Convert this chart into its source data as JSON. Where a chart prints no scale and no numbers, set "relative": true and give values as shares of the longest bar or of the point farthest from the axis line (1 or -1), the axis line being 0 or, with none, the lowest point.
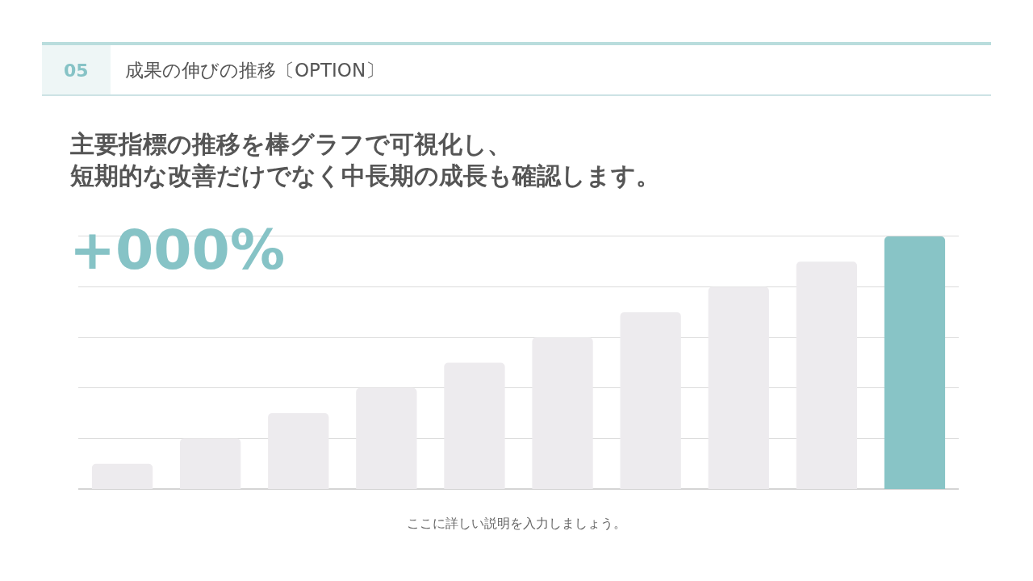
{
  "chart_data": {
    "type": "bar",
    "title": "成果の伸びの推移〔OPTION〕",
    "subtitle": "主要指標の推移を棒グラフで可視化し、短期的な改善だけでなく中長期の成長も確認します。",
    "annotations": [
      "05",
      "+000%",
      "ここに詳しい説明を入力しましょう。"
    ],
    "categories": [
      null,
      null,
      null,
      null,
      null,
      null,
      null,
      null,
      null,
      null
    ],
    "values": [
      0.1,
      0.2,
      0.3,
      0.4,
      0.5,
      0.6,
      0.7,
      0.8,
      0.9,
      1.0
    ],
    "colors": [
      "#edebee",
      "#edebee",
      "#edebee",
      "#edebee",
      "#edebee",
      "#edebee",
      "#edebee",
      "#edebee",
      "#edebee",
      "#88c4c6"
    ],
    "relative": true,
    "grid": "y"
  }
}
